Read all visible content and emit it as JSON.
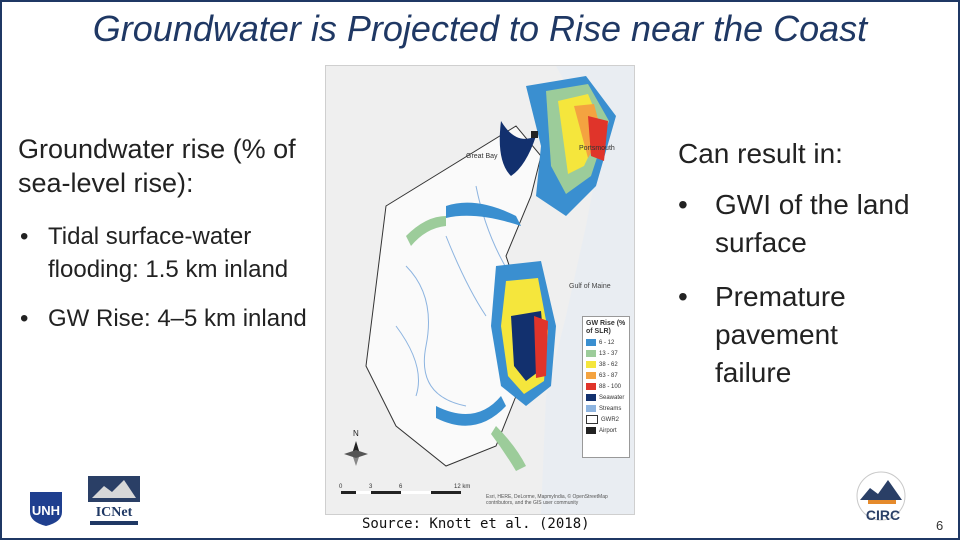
{
  "slide": {
    "title": "Groundwater is Projected to Rise near the Coast",
    "left_heading": "Groundwater rise (% of sea-level rise):",
    "left_bullets": [
      "Tidal surface-water flooding: 1.5 km inland",
      "GW Rise: 4–5 km inland"
    ],
    "right_heading": "Can result in:",
    "right_bullets": [
      "GWI of the land surface",
      "Premature pavement failure"
    ],
    "source": "Source: Knott et al. (2018)",
    "page_number": "6"
  },
  "map": {
    "labels": {
      "great_bay": "Great Bay",
      "portsmouth": "Portsmouth",
      "gulf_of_maine": "Gulf of Maine",
      "north": "N",
      "scale": [
        "0",
        "3",
        "6",
        "12 km"
      ],
      "credit": "Esri, HERE, DeLorme, MapmyIndia, © OpenStreetMap contributors, and the GIS user community"
    },
    "legend": {
      "title": "GW Rise (% of SLR)",
      "items": [
        {
          "label": "6 - 12",
          "color": "#3a8fd0"
        },
        {
          "label": "13 - 37",
          "color": "#9ccc9a"
        },
        {
          "label": "38 - 62",
          "color": "#f5e63c"
        },
        {
          "label": "63 - 87",
          "color": "#f4a340"
        },
        {
          "label": "88 - 100",
          "color": "#e0342a"
        },
        {
          "label": "Seawater",
          "color": "#12306e"
        },
        {
          "label": "Streams",
          "color": "#8db4e0"
        },
        {
          "label": "GWR2",
          "color": "#ffffff"
        },
        {
          "label": "Airport",
          "color": "#222222"
        }
      ]
    }
  },
  "logos": {
    "unh": "UNH",
    "icnet": "ICNet",
    "circ": "CIRC"
  }
}
